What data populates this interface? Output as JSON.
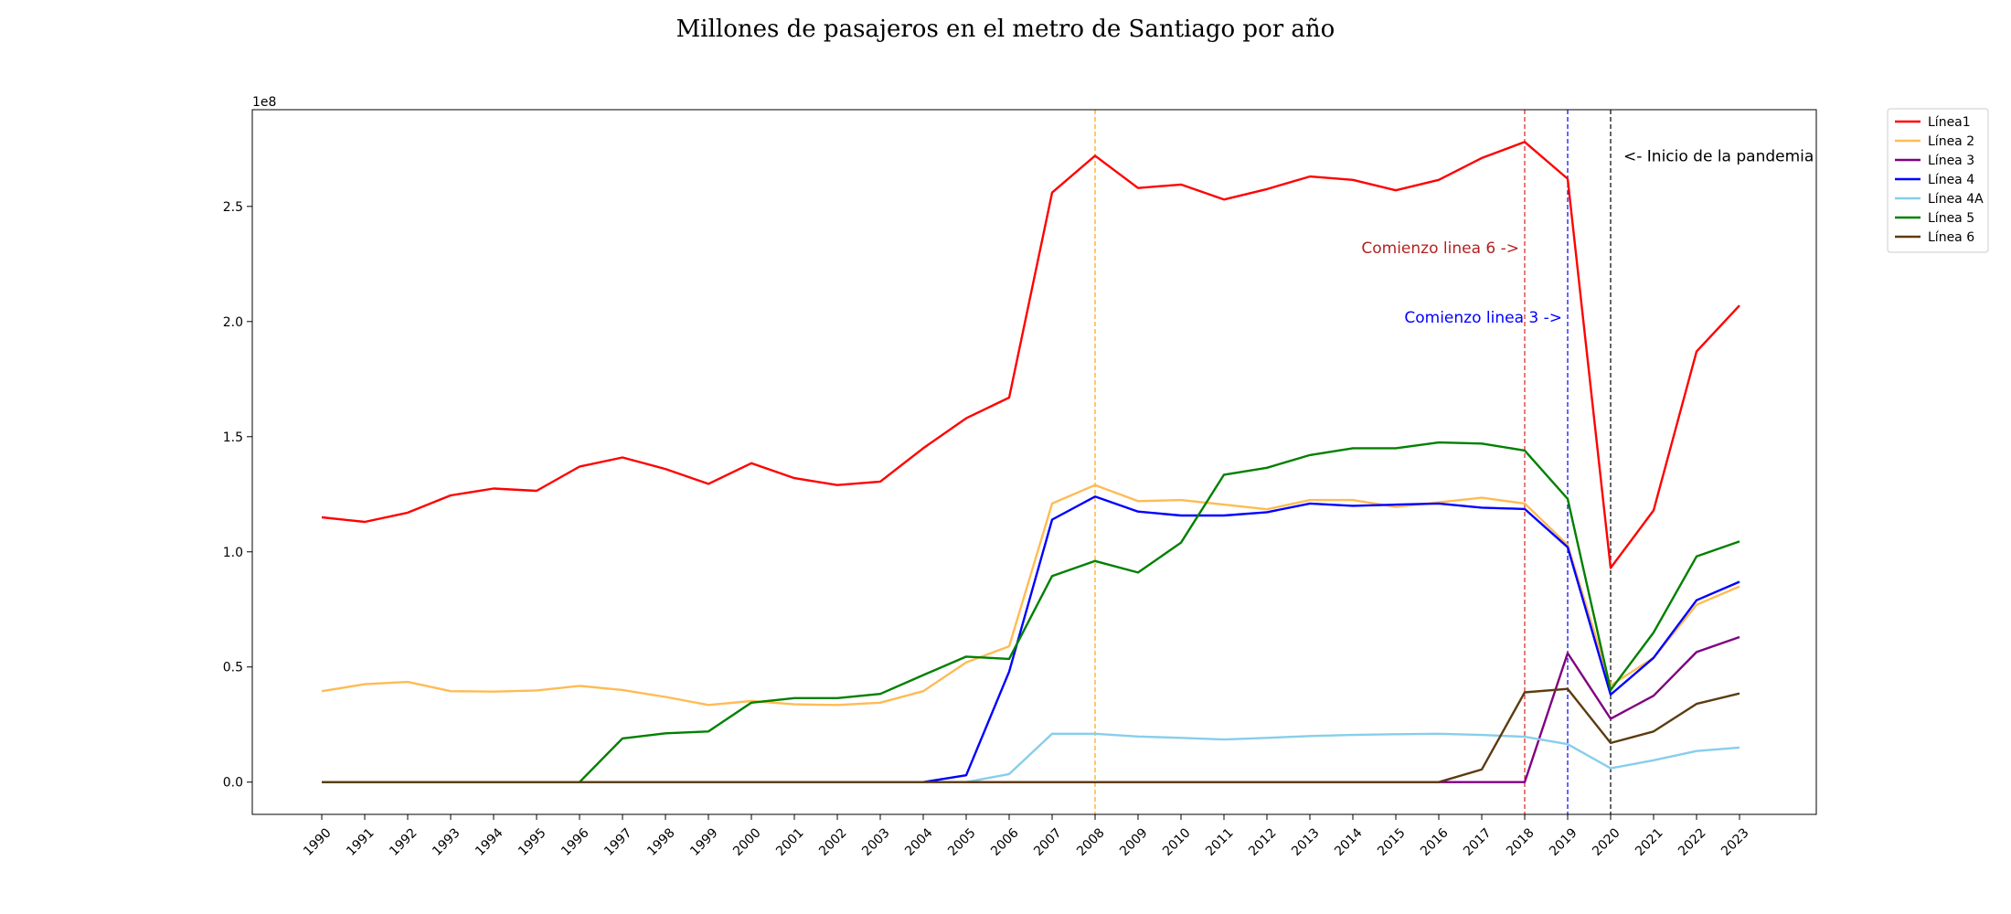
{
  "chart_data": {
    "type": "line",
    "title": "Millones de pasajeros en el metro de Santiago por año",
    "xlabel": "",
    "ylabel": "",
    "y_offset_text": "1e8",
    "categories": [
      "1990",
      "1991",
      "1992",
      "1993",
      "1994",
      "1995",
      "1996",
      "1997",
      "1998",
      "1999",
      "2000",
      "2001",
      "2002",
      "2003",
      "2004",
      "2005",
      "2006",
      "2007",
      "2008",
      "2009",
      "2010",
      "2011",
      "2012",
      "2013",
      "2014",
      "2015",
      "2016",
      "2017",
      "2018",
      "2019",
      "2020",
      "2021",
      "2022",
      "2023"
    ],
    "ylim": [
      -0.14,
      2.92
    ],
    "yticks": [
      0.0,
      0.5,
      1.0,
      1.5,
      2.0,
      2.5
    ],
    "ytick_labels": [
      "0.0",
      "0.5",
      "1.0",
      "1.5",
      "2.0",
      "2.5"
    ],
    "grid": false,
    "legend_position": "outside-top-right",
    "series": [
      {
        "name": "Línea1",
        "color": "#ff0000",
        "values": [
          1.15,
          1.13,
          1.17,
          1.245,
          1.275,
          1.265,
          1.37,
          1.41,
          1.36,
          1.295,
          1.385,
          1.32,
          1.29,
          1.305,
          1.45,
          1.58,
          1.67,
          2.56,
          2.72,
          2.58,
          2.595,
          2.53,
          2.575,
          2.63,
          2.615,
          2.57,
          2.615,
          2.71,
          2.78,
          2.62,
          0.93,
          1.18,
          1.87,
          2.07
        ]
      },
      {
        "name": "Línea 2",
        "color": "#ffbb55",
        "values": [
          0.395,
          0.425,
          0.435,
          0.395,
          0.393,
          0.398,
          0.418,
          0.4,
          0.37,
          0.335,
          0.352,
          0.338,
          0.335,
          0.345,
          0.395,
          0.52,
          0.59,
          1.21,
          1.29,
          1.22,
          1.225,
          1.205,
          1.185,
          1.225,
          1.225,
          1.195,
          1.215,
          1.235,
          1.21,
          1.03,
          0.42,
          0.54,
          0.77,
          0.85
        ]
      },
      {
        "name": "Línea 3",
        "color": "#800080",
        "values": [
          0,
          0,
          0,
          0,
          0,
          0,
          0,
          0,
          0,
          0,
          0,
          0,
          0,
          0,
          0,
          0,
          0,
          0,
          0,
          0,
          0,
          0,
          0,
          0,
          0,
          0,
          0,
          0,
          0,
          0.56,
          0.275,
          0.375,
          0.565,
          0.63
        ]
      },
      {
        "name": "Línea 4",
        "color": "#0000ff",
        "values": [
          0,
          0,
          0,
          0,
          0,
          0,
          0,
          0,
          0,
          0,
          0,
          0,
          0,
          0,
          0,
          0.03,
          0.48,
          1.14,
          1.24,
          1.175,
          1.158,
          1.158,
          1.172,
          1.21,
          1.2,
          1.205,
          1.21,
          1.192,
          1.186,
          1.02,
          0.38,
          0.54,
          0.79,
          0.87
        ]
      },
      {
        "name": "Línea 4A",
        "color": "#87ceeb",
        "values": [
          0,
          0,
          0,
          0,
          0,
          0,
          0,
          0,
          0,
          0,
          0,
          0,
          0,
          0,
          0,
          0,
          0.035,
          0.21,
          0.21,
          0.198,
          0.192,
          0.185,
          0.192,
          0.2,
          0.205,
          0.208,
          0.21,
          0.205,
          0.197,
          0.165,
          0.06,
          0.095,
          0.135,
          0.15
        ]
      },
      {
        "name": "Línea 5",
        "color": "#008000",
        "values": [
          0,
          0,
          0,
          0,
          0,
          0,
          0,
          0.19,
          0.212,
          0.22,
          0.345,
          0.365,
          0.365,
          0.383,
          0.465,
          0.545,
          0.535,
          0.895,
          0.96,
          0.91,
          1.04,
          1.335,
          1.365,
          1.42,
          1.45,
          1.45,
          1.475,
          1.47,
          1.44,
          1.23,
          0.4,
          0.65,
          0.98,
          1.045
        ]
      },
      {
        "name": "Línea 6",
        "color": "#5c3c10",
        "values": [
          0,
          0,
          0,
          0,
          0,
          0,
          0,
          0,
          0,
          0,
          0,
          0,
          0,
          0,
          0,
          0,
          0,
          0,
          0,
          0,
          0,
          0,
          0,
          0,
          0,
          0,
          0,
          0.055,
          0.39,
          0.405,
          0.17,
          0.22,
          0.34,
          0.385
        ]
      }
    ],
    "vlines": [
      {
        "x": "2008",
        "color": "#ffa500"
      },
      {
        "x": "2018",
        "color": "#dd2222"
      },
      {
        "x": "2019",
        "color": "#0000ff"
      },
      {
        "x": "2020",
        "color": "#000000"
      }
    ],
    "annotations": [
      {
        "text": "<- Inicio de la pandemia",
        "x": "2020",
        "y": 2.72,
        "color": "#000000",
        "anchor": "start"
      },
      {
        "text": "Comienzo linea 6 ->",
        "x": "2018",
        "y": 2.32,
        "color": "#b22222",
        "anchor": "end"
      },
      {
        "text": "Comienzo linea 3 ->",
        "x": "2019",
        "y": 2.02,
        "color": "#0000ff",
        "anchor": "end"
      }
    ]
  }
}
